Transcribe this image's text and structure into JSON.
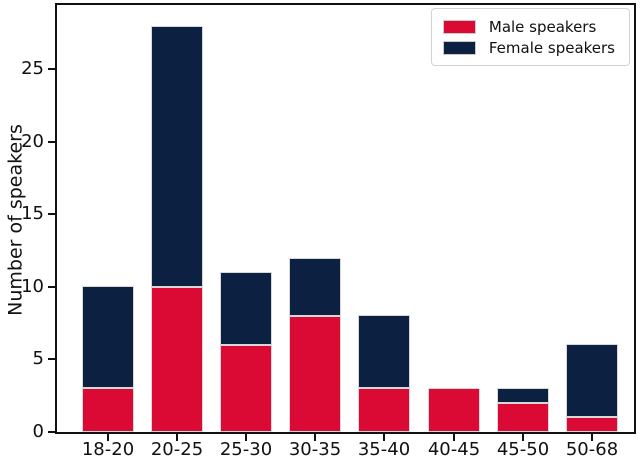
{
  "chart_data": {
    "type": "bar",
    "stacked": true,
    "title": "",
    "xlabel": "",
    "ylabel": "Number of speakers",
    "categories": [
      "18-20",
      "20-25",
      "25-30",
      "30-35",
      "35-40",
      "40-45",
      "45-50",
      "50-68"
    ],
    "series": [
      {
        "name": "Male speakers",
        "color": "#db0a34",
        "values": [
          3,
          10,
          6,
          8,
          3,
          3,
          2,
          1
        ]
      },
      {
        "name": "Female speakers",
        "color": "#0c2142",
        "values": [
          7,
          18,
          5,
          4,
          5,
          0,
          1,
          5
        ]
      }
    ],
    "ylim": [
      0,
      29.4
    ],
    "yticks": [
      0,
      5,
      10,
      15,
      20,
      25
    ],
    "legend_position": "upper right",
    "grid": false,
    "bar_edge_color": "#d8d8d8",
    "spine_color": "#111111"
  }
}
